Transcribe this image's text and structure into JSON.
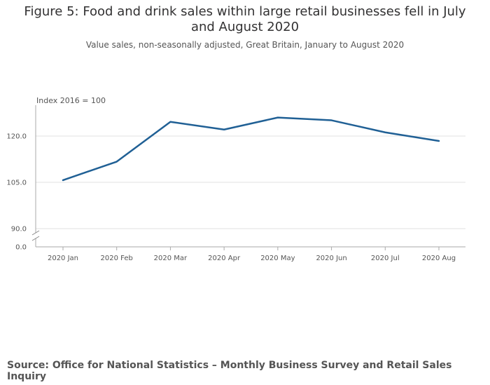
{
  "page": {
    "title": "Figure 5: Food and drink sales within large retail businesses fell in July and August 2020",
    "subtitle": "Value sales, non-seasonally adjusted, Great Britain, January to August 2020",
    "source": "Source: Office for National Statistics – Monthly Business Survey and Retail Sales Inquiry"
  },
  "chart_data": {
    "type": "line",
    "title": "Figure 5: Food and drink sales within large retail businesses fell in July and August 2020",
    "subtitle": "Value sales, non-seasonally adjusted, Great Britain, January to August 2020",
    "unit_label": "Index 2016 = 100",
    "categories": [
      "2020 Jan",
      "2020 Feb",
      "2020 Mar",
      "2020 Apr",
      "2020 May",
      "2020 Jun",
      "2020 Jul",
      "2020 Aug"
    ],
    "series": [
      {
        "name": "Food and drink sales",
        "color": "#206095",
        "values": [
          105.7,
          111.7,
          124.6,
          122.1,
          126.0,
          125.1,
          121.2,
          118.4
        ]
      }
    ],
    "y_ticks": [
      {
        "value": 90,
        "label": "90.0"
      },
      {
        "value": 105,
        "label": "105.0"
      },
      {
        "value": 120,
        "label": "120.0"
      }
    ],
    "y_zero_label": "0.0",
    "ylim": [
      90,
      130
    ],
    "axis_break": true,
    "grid": true
  }
}
